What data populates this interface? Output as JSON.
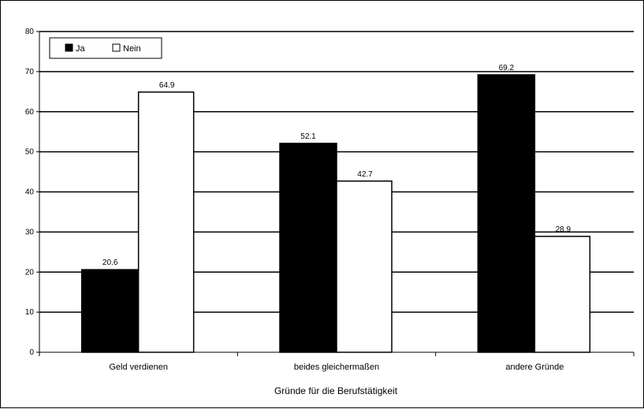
{
  "chart_data": {
    "type": "bar",
    "xlabel": "Gründe für die Berufstätigkeit",
    "ylabel": "",
    "ylim": [
      0,
      80
    ],
    "yticks": [
      0,
      10,
      20,
      30,
      40,
      50,
      60,
      70,
      80
    ],
    "grid": true,
    "legend_position": "top-left",
    "categories": [
      "Geld verdienen",
      "beides gleichermaßen",
      "andere Gründe"
    ],
    "series": [
      {
        "name": "Ja",
        "values": [
          20.6,
          52.1,
          69.2
        ],
        "labels": [
          "20.6",
          "52.1",
          "69.2"
        ],
        "color": "#000000"
      },
      {
        "name": "Nein",
        "values": [
          64.9,
          42.7,
          28.9
        ],
        "labels": [
          "64.9",
          "42.7",
          "28.9"
        ],
        "color": "#ffffff"
      }
    ]
  }
}
